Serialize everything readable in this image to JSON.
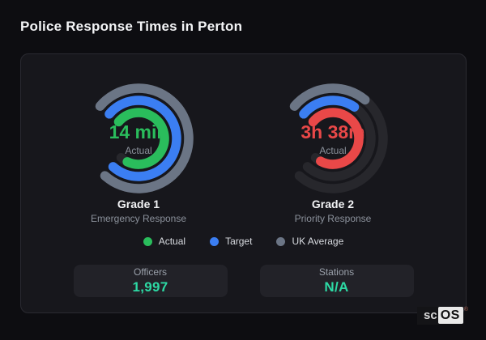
{
  "page_title": "Police Response Times in Perton",
  "card": {
    "gauges": [
      {
        "value_label": "14 min",
        "value_color": "#2abd5c",
        "center_caption": "Actual",
        "grade": "Grade 1",
        "subtitle": "Emergency Response"
      },
      {
        "value_label": "3h 38m",
        "value_color": "#e94848",
        "center_caption": "Actual",
        "grade": "Grade 2",
        "subtitle": "Priority Response"
      }
    ],
    "legend": [
      {
        "label": "Actual",
        "color": "#2abd5c"
      },
      {
        "label": "Target",
        "color": "#3b7ef2"
      },
      {
        "label": "UK Average",
        "color": "#6b7585"
      }
    ],
    "stats": [
      {
        "label": "Officers",
        "value": "1,997"
      },
      {
        "label": "Stations",
        "value": "N/A"
      }
    ]
  },
  "logo": {
    "prefix": "sc",
    "suffix": "OS",
    "reg": "®"
  },
  "gauge_geometry": {
    "start_angle": 140,
    "total_sweep": 272,
    "stroke_width": 11.5,
    "track_color": "#27272c"
  },
  "chart_data": [
    {
      "type": "gauge",
      "title": "Grade 1",
      "subtitle": "Emergency Response",
      "center_value": "14 min",
      "center_caption": "Actual",
      "legend_position": "bottom",
      "series": [
        {
          "name": "Actual",
          "color": "#2abd5c",
          "radius": 32,
          "fill_fraction": 0.94
        },
        {
          "name": "Target",
          "color": "#3b7ef2",
          "radius": 47,
          "fill_fraction": 1.0
        },
        {
          "name": "UK Average",
          "color": "#6b7585",
          "radius": 62,
          "fill_fraction": 1.0
        }
      ]
    },
    {
      "type": "gauge",
      "title": "Grade 2",
      "subtitle": "Priority Response",
      "center_value": "3h 38m",
      "center_caption": "Actual",
      "legend_position": "bottom",
      "series": [
        {
          "name": "Actual",
          "color": "#e94848",
          "radius": 32,
          "fill_fraction": 0.95
        },
        {
          "name": "Target",
          "color": "#3b7ef2",
          "radius": 47,
          "fill_fraction": 0.31
        },
        {
          "name": "UK Average",
          "color": "#6b7585",
          "radius": 62,
          "fill_fraction": 0.33
        }
      ]
    }
  ]
}
